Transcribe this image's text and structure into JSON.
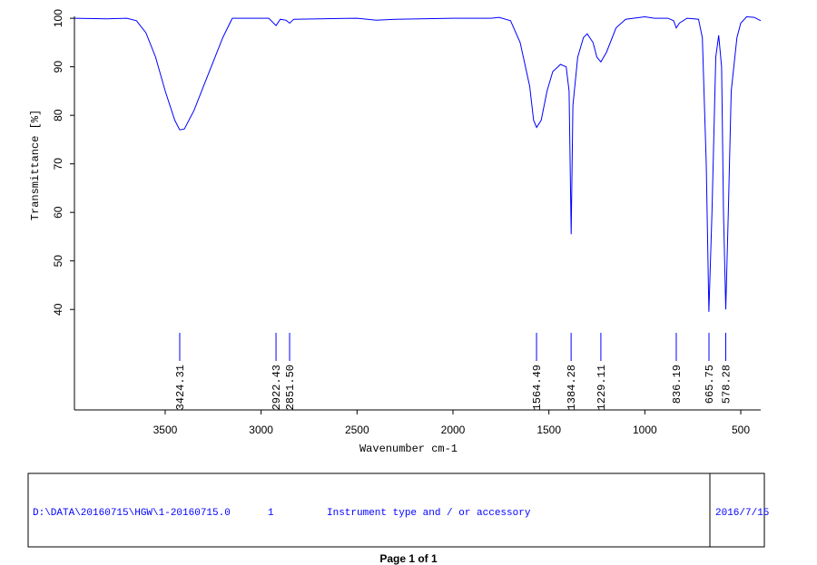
{
  "chart_data": {
    "type": "line",
    "xlabel": "Wavenumber cm-1",
    "ylabel": "Transmittance [%]",
    "xlim": [
      3973,
      396
    ],
    "ylim": [
      19.3,
      100.4
    ],
    "xticks": [
      3500,
      3000,
      2500,
      2000,
      1500,
      1000,
      500
    ],
    "yticks": [
      40,
      50,
      60,
      70,
      80,
      90,
      100
    ],
    "x": [
      3973,
      3800,
      3700,
      3650,
      3600,
      3550,
      3500,
      3450,
      3424,
      3400,
      3350,
      3300,
      3250,
      3200,
      3150,
      3050,
      2960,
      2922,
      2900,
      2870,
      2851,
      2830,
      2500,
      2400,
      2300,
      2000,
      1800,
      1760,
      1700,
      1650,
      1600,
      1580,
      1564,
      1540,
      1510,
      1480,
      1440,
      1410,
      1395,
      1384,
      1375,
      1350,
      1320,
      1300,
      1270,
      1250,
      1229,
      1200,
      1150,
      1100,
      1000,
      950,
      880,
      850,
      836,
      820,
      780,
      720,
      700,
      680,
      666,
      650,
      630,
      615,
      600,
      590,
      578,
      565,
      550,
      520,
      500,
      470,
      430,
      396
    ],
    "series": [
      {
        "color": "#0000ff",
        "values": [
          100,
          99.9,
          100,
          99.5,
          97,
          92,
          85,
          79,
          77,
          77.2,
          81,
          86,
          91,
          96,
          100,
          100,
          100,
          98.5,
          99.8,
          99.6,
          99,
          99.8,
          100,
          99.6,
          99.8,
          100,
          100,
          100.2,
          99.5,
          95,
          86,
          79,
          77.5,
          79,
          85,
          89,
          90.5,
          90,
          85,
          55.5,
          82,
          92,
          96,
          96.8,
          95,
          92,
          91,
          93,
          98,
          99.8,
          100.3,
          100,
          100,
          99.5,
          98,
          99,
          100,
          99.8,
          96,
          70,
          39.5,
          60,
          92,
          96.5,
          90,
          60,
          40,
          60,
          85,
          96,
          99,
          100.3,
          100.2,
          99.5
        ]
      }
    ],
    "peaks": [
      3424.31,
      2922.43,
      2851.5,
      1564.49,
      1384.28,
      1229.11,
      836.19,
      665.75,
      578.28
    ],
    "peak_labels": [
      "3424.31",
      "2922.43",
      "2851.50",
      "1564.49",
      "1384.28",
      "1229.11",
      "836.19",
      "665.75",
      "578.28"
    ]
  },
  "footer": {
    "file": "D:\\DATA\\20160715\\HGW\\1-20160715.0",
    "number": "1",
    "instrument": "Instrument type and / or accessory",
    "date": "2016/7/15"
  },
  "page_label": "Page 1 of 1"
}
